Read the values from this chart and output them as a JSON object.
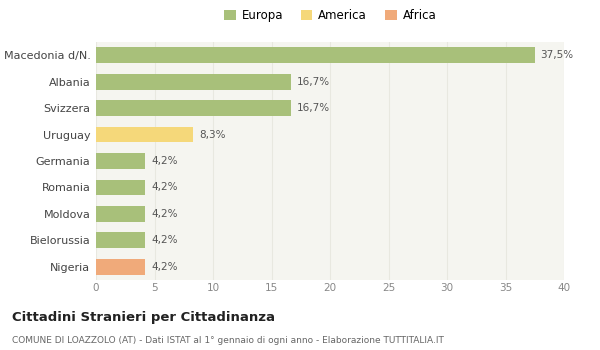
{
  "categories": [
    "Macedonia d/N.",
    "Albania",
    "Svizzera",
    "Uruguay",
    "Germania",
    "Romania",
    "Moldova",
    "Bielorussia",
    "Nigeria"
  ],
  "values": [
    37.5,
    16.7,
    16.7,
    8.3,
    4.2,
    4.2,
    4.2,
    4.2,
    4.2
  ],
  "labels": [
    "37,5%",
    "16,7%",
    "16,7%",
    "8,3%",
    "4,2%",
    "4,2%",
    "4,2%",
    "4,2%",
    "4,2%"
  ],
  "bar_colors": [
    "#a8c07a",
    "#a8c07a",
    "#a8c07a",
    "#f5d87a",
    "#a8c07a",
    "#a8c07a",
    "#a8c07a",
    "#a8c07a",
    "#f0aa7a"
  ],
  "legend_labels": [
    "Europa",
    "America",
    "Africa"
  ],
  "legend_colors": [
    "#a8c07a",
    "#f5d87a",
    "#f0aa7a"
  ],
  "xlim": [
    0,
    40
  ],
  "xticks": [
    0,
    5,
    10,
    15,
    20,
    25,
    30,
    35,
    40
  ],
  "title": "Cittadini Stranieri per Cittadinanza",
  "subtitle": "COMUNE DI LOAZZOLO (AT) - Dati ISTAT al 1° gennaio di ogni anno - Elaborazione TUTTITALIA.IT",
  "bg_color": "#ffffff",
  "plot_bg_color": "#f5f5f0",
  "grid_color": "#e8e8e0",
  "bar_height": 0.6,
  "label_fontsize": 7.5,
  "ytick_fontsize": 8,
  "xtick_fontsize": 7.5,
  "legend_fontsize": 8.5,
  "title_fontsize": 9.5,
  "subtitle_fontsize": 6.5
}
